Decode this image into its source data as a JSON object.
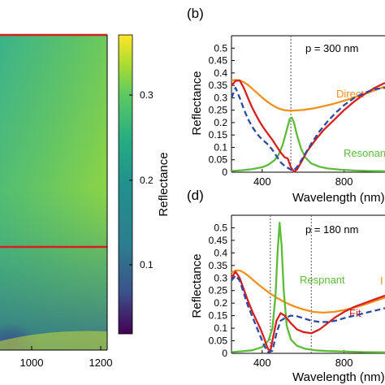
{
  "panels": {
    "b": {
      "label": "(b)",
      "annotation": "p = 300 nm"
    },
    "d": {
      "label": "(d)",
      "annotation": "p = 180 nm"
    }
  },
  "colorbar": {
    "label": "Reflectance",
    "ticks": [
      "0.1",
      "0.2",
      "0.3"
    ],
    "range": [
      0.03,
      0.36
    ]
  },
  "colors": {
    "direct": "#f0901e",
    "resonant": "#5dbb3a",
    "fit": "#d62020",
    "measured": "#2b4aa0",
    "axis": "#000000"
  },
  "chart_data": [
    {
      "panel": "a",
      "type": "heatmap",
      "xlabel": "",
      "ylabel": "",
      "x_tick_labels": [
        "1000",
        "1200"
      ],
      "xlim": [
        700,
        1200
      ],
      "colormap": "viridis",
      "colorbar_label": "Reflectance",
      "colorbar_ticks": [
        0.1,
        0.2,
        0.3
      ],
      "markers": [
        "horizontal red line near top",
        "horizontal red line at middle"
      ]
    },
    {
      "panel": "b",
      "type": "line",
      "title": "",
      "xlabel": "Wavelength (nm)",
      "ylabel": "Reflectance",
      "xlim": [
        250,
        1000
      ],
      "ylim": [
        0,
        0.55
      ],
      "x_ticks": [
        400,
        800
      ],
      "x_tick_labels": [
        "400",
        "800"
      ],
      "y_ticks": [
        0,
        0.05,
        0.1,
        0.15,
        0.2,
        0.25,
        0.3,
        0.35,
        0.4,
        0.45,
        0.5
      ],
      "y_tick_labels": [
        "0",
        "0.05",
        "0.1",
        "0.15",
        "0.2",
        "0.25",
        "0.3",
        "0.35",
        "0.4",
        "0.45",
        "0.5"
      ],
      "vline": 540,
      "series_labels": [
        "Direct",
        "Resonant"
      ],
      "series": [
        {
          "key": "direct",
          "x": [
            250,
            270,
            290,
            310,
            330,
            350,
            370,
            390,
            410,
            430,
            450,
            470,
            490,
            510,
            530,
            550,
            570,
            600,
            650,
            700,
            750,
            800,
            850,
            900,
            950,
            1000
          ],
          "y": [
            0.37,
            0.372,
            0.37,
            0.363,
            0.352,
            0.338,
            0.323,
            0.308,
            0.294,
            0.281,
            0.27,
            0.261,
            0.254,
            0.25,
            0.248,
            0.248,
            0.249,
            0.251,
            0.257,
            0.266,
            0.276,
            0.288,
            0.301,
            0.315,
            0.33,
            0.345
          ]
        },
        {
          "key": "resonant",
          "x": [
            250,
            300,
            350,
            400,
            430,
            460,
            480,
            500,
            520,
            535,
            545,
            555,
            570,
            590,
            610,
            640,
            680,
            720,
            780,
            850,
            920,
            1000
          ],
          "y": [
            0.005,
            0.008,
            0.012,
            0.02,
            0.03,
            0.048,
            0.07,
            0.11,
            0.17,
            0.215,
            0.22,
            0.2,
            0.15,
            0.095,
            0.06,
            0.035,
            0.022,
            0.015,
            0.01,
            0.007,
            0.005,
            0.004
          ]
        },
        {
          "key": "fit",
          "x": [
            250,
            270,
            290,
            310,
            330,
            350,
            370,
            390,
            410,
            430,
            450,
            470,
            490,
            510,
            525,
            540,
            555,
            570,
            590,
            620,
            660,
            700,
            750,
            800,
            850,
            900,
            950,
            1000
          ],
          "y": [
            0.35,
            0.368,
            0.37,
            0.34,
            0.3,
            0.262,
            0.23,
            0.2,
            0.175,
            0.152,
            0.13,
            0.105,
            0.08,
            0.06,
            0.055,
            0.02,
            0.002,
            0.01,
            0.04,
            0.085,
            0.13,
            0.17,
            0.21,
            0.25,
            0.285,
            0.315,
            0.34,
            0.36
          ]
        },
        {
          "key": "measured",
          "x": [
            250,
            270,
            290,
            310,
            330,
            350,
            370,
            390,
            410,
            430,
            450,
            470,
            490,
            510,
            530,
            550,
            570,
            600,
            640,
            680,
            720,
            760,
            800,
            850,
            900,
            950,
            1000
          ],
          "y": [
            0.3,
            0.34,
            0.3,
            0.255,
            0.215,
            0.185,
            0.16,
            0.14,
            0.125,
            0.11,
            0.09,
            0.065,
            0.04,
            0.025,
            0.015,
            0.005,
            0.02,
            0.06,
            0.115,
            0.165,
            0.205,
            0.24,
            0.27,
            0.3,
            0.32,
            0.335,
            0.34
          ]
        }
      ]
    },
    {
      "panel": "d",
      "type": "line",
      "title": "",
      "xlabel": "Wavelength (nm)",
      "ylabel": "Reflectance",
      "xlim": [
        250,
        1000
      ],
      "ylim": [
        0,
        0.55
      ],
      "x_ticks": [
        400,
        800
      ],
      "x_tick_labels": [
        "400",
        "800"
      ],
      "y_ticks": [
        0,
        0.05,
        0.1,
        0.15,
        0.2,
        0.25,
        0.3,
        0.35,
        0.4,
        0.45,
        0.5
      ],
      "y_tick_labels": [
        "0",
        "0.05",
        "0.1",
        "0.15",
        "0.2",
        "0.25",
        "0.3",
        "0.35",
        "0.4",
        "0.45",
        "0.5"
      ],
      "vlines": [
        440,
        640
      ],
      "series_labels": [
        "Respnant",
        "Fit",
        "I"
      ],
      "series": [
        {
          "key": "direct",
          "x": [
            250,
            270,
            290,
            310,
            330,
            350,
            380,
            410,
            440,
            470,
            500,
            530,
            560,
            600,
            650,
            700,
            750,
            800,
            850,
            900,
            950,
            1000
          ],
          "y": [
            0.32,
            0.33,
            0.33,
            0.322,
            0.31,
            0.296,
            0.275,
            0.256,
            0.238,
            0.222,
            0.208,
            0.196,
            0.186,
            0.175,
            0.165,
            0.162,
            0.165,
            0.172,
            0.182,
            0.194,
            0.208,
            0.222
          ]
        },
        {
          "key": "resonant",
          "x": [
            250,
            300,
            350,
            400,
            430,
            450,
            465,
            475,
            485,
            495,
            505,
            520,
            540,
            570,
            610,
            660,
            720,
            800,
            900,
            1000
          ],
          "y": [
            0.005,
            0.008,
            0.012,
            0.025,
            0.05,
            0.1,
            0.23,
            0.4,
            0.52,
            0.43,
            0.25,
            0.11,
            0.055,
            0.03,
            0.018,
            0.012,
            0.009,
            0.007,
            0.005,
            0.004
          ]
        },
        {
          "key": "fit",
          "x": [
            250,
            270,
            290,
            310,
            330,
            350,
            370,
            390,
            410,
            420,
            430,
            440,
            450,
            470,
            490,
            510,
            540,
            570,
            600,
            640,
            680,
            720,
            760,
            800,
            850,
            900,
            950,
            1000
          ],
          "y": [
            0.3,
            0.325,
            0.3,
            0.255,
            0.21,
            0.17,
            0.135,
            0.1,
            0.06,
            0.035,
            0.015,
            0.01,
            0.05,
            0.13,
            0.16,
            0.15,
            0.12,
            0.095,
            0.085,
            0.08,
            0.095,
            0.12,
            0.145,
            0.165,
            0.185,
            0.2,
            0.215,
            0.23
          ]
        },
        {
          "key": "measured",
          "x": [
            250,
            270,
            290,
            310,
            330,
            350,
            370,
            390,
            410,
            430,
            450,
            470,
            490,
            510,
            540,
            570,
            600,
            640,
            680,
            720,
            760,
            800,
            850,
            900,
            950,
            1000
          ],
          "y": [
            0.29,
            0.31,
            0.29,
            0.24,
            0.19,
            0.15,
            0.11,
            0.07,
            0.03,
            0.005,
            0.01,
            0.08,
            0.13,
            0.14,
            0.15,
            0.148,
            0.14,
            0.13,
            0.125,
            0.125,
            0.13,
            0.14,
            0.15,
            0.16,
            0.17,
            0.18
          ]
        }
      ]
    }
  ]
}
